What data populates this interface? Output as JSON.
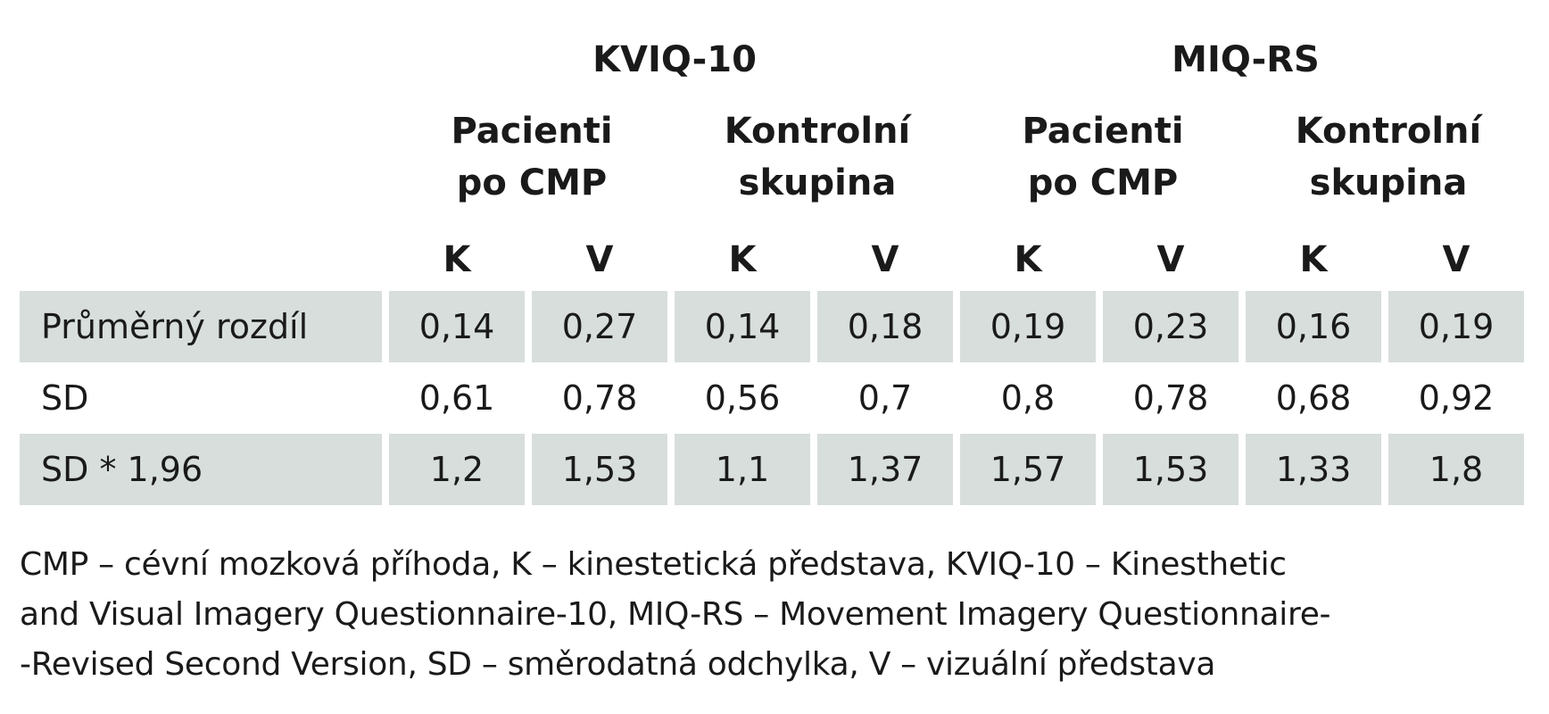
{
  "table": {
    "groups": [
      {
        "title": "KVIQ-10"
      },
      {
        "title": "MIQ-RS"
      }
    ],
    "subgroups": [
      {
        "line1": "Pacienti",
        "line2": "po CMP"
      },
      {
        "line1": "Kontrolní",
        "line2": "skupina"
      },
      {
        "line1": "Pacienti",
        "line2": "po CMP"
      },
      {
        "line1": "Kontrolní",
        "line2": "skupina"
      }
    ],
    "columns": [
      "K",
      "V",
      "K",
      "V",
      "K",
      "V",
      "K",
      "V"
    ],
    "rows": [
      {
        "label": "Průměrný rozdíl",
        "values": [
          "0,14",
          "0,27",
          "0,14",
          "0,18",
          "0,19",
          "0,23",
          "0,16",
          "0,19"
        ]
      },
      {
        "label": "SD",
        "values": [
          "0,61",
          "0,78",
          "0,56",
          "0,7",
          "0,8",
          "0,78",
          "0,68",
          "0,92"
        ]
      },
      {
        "label": "SD * 1,96",
        "values": [
          "1,2",
          "1,53",
          "1,1",
          "1,37",
          "1,57",
          "1,53",
          "1,33",
          "1,8"
        ]
      }
    ]
  },
  "footnote": {
    "line1": "CMP – cévní mozková příhoda, K – kinestetická představa, KVIQ-10 – Kinesthetic",
    "line2": "and Visual Imagery Questionnaire-10, MIQ-RS – Movement Imagery Questionnaire-",
    "line3": "-Revised Second Version, SD – směrodatná odchylka, V – vizuální představa"
  },
  "colors": {
    "shade": "#d7dedb",
    "text": "#1a1a1a"
  }
}
